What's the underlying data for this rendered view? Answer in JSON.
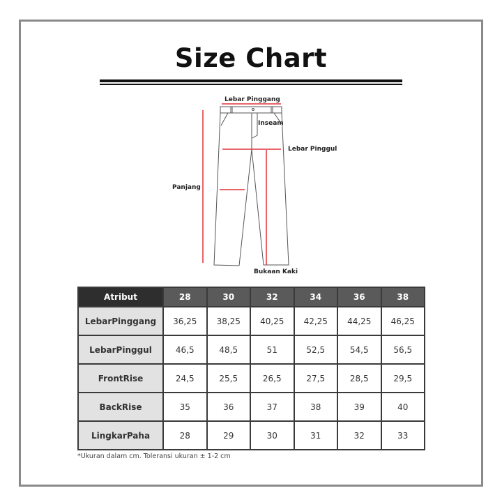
{
  "title": "Size Chart",
  "diagram": {
    "labels": {
      "waist": "Lebar Pinggang",
      "inseam": "Inseam",
      "hip": "Lebar Pinggul",
      "length": "Panjang",
      "leg_opening": "Bukaan Kaki"
    },
    "measure_color": "#e0303a"
  },
  "table": {
    "header": [
      "Atribut",
      "28",
      "30",
      "32",
      "34",
      "36",
      "38"
    ],
    "rows": [
      {
        "label": "LebarPinggang",
        "values": [
          "36,25",
          "38,25",
          "40,25",
          "42,25",
          "44,25",
          "46,25"
        ]
      },
      {
        "label": "LebarPinggul",
        "values": [
          "46,5",
          "48,5",
          "51",
          "52,5",
          "54,5",
          "56,5"
        ]
      },
      {
        "label": "FrontRise",
        "values": [
          "24,5",
          "25,5",
          "26,5",
          "27,5",
          "28,5",
          "29,5"
        ]
      },
      {
        "label": "BackRise",
        "values": [
          "35",
          "36",
          "37",
          "38",
          "39",
          "40"
        ]
      },
      {
        "label": "LingkarPaha",
        "values": [
          "28",
          "29",
          "30",
          "31",
          "32",
          "33"
        ]
      }
    ]
  },
  "note": "*Ukuran dalam cm. Toleransi ukuran ± 1-2 cm"
}
